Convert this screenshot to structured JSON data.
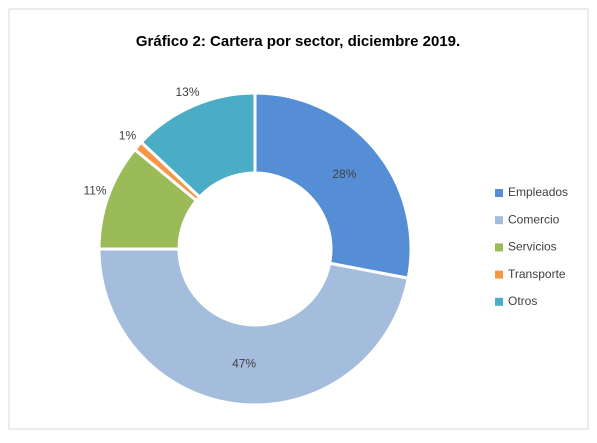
{
  "chart_data": {
    "type": "donut",
    "title": "Gráfico 2: Cartera por sector, diciembre 2019.",
    "categories": [
      "Empleados",
      "Comercio",
      "Servicios",
      "Transporte",
      "Otros"
    ],
    "values": [
      28,
      47,
      11,
      1,
      13
    ],
    "value_labels": [
      "28%",
      "47%",
      "11%",
      "1%",
      "13%"
    ],
    "colors": [
      "#558ed5",
      "#a5bddc",
      "#9bbb59",
      "#f79646",
      "#4bacc6"
    ],
    "legend": "right"
  }
}
